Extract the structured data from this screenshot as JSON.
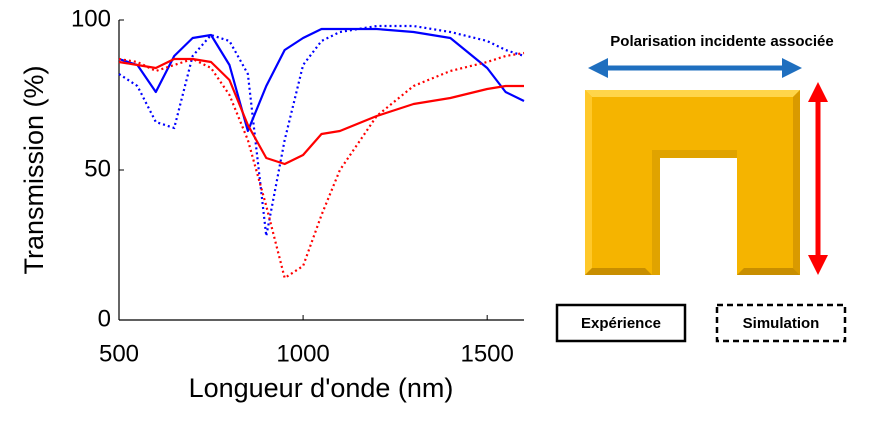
{
  "chart_data": {
    "type": "line",
    "xlabel": "Longueur d'onde (nm)",
    "ylabel": "Transmission (%)",
    "x": [
      500,
      550,
      600,
      650,
      700,
      750,
      800,
      850,
      900,
      950,
      1000,
      1050,
      1100,
      1200,
      1300,
      1400,
      1500,
      1550,
      1600
    ],
    "series": [
      {
        "color": "#0000ff",
        "dash": false,
        "values": [
          87,
          85,
          76,
          88,
          94,
          95,
          85,
          63,
          78,
          90,
          94,
          97,
          97,
          97,
          96,
          94,
          84,
          76,
          73
        ]
      },
      {
        "color": "#0000ff",
        "dash": true,
        "values": [
          82,
          78,
          66,
          64,
          88,
          95,
          93,
          82,
          28,
          60,
          85,
          93,
          96,
          98,
          98,
          96,
          93,
          90,
          88
        ]
      },
      {
        "color": "#ff0000",
        "dash": false,
        "values": [
          86,
          85,
          84,
          87,
          87,
          86,
          80,
          65,
          54,
          52,
          55,
          62,
          63,
          68,
          72,
          74,
          77,
          78,
          78
        ]
      },
      {
        "color": "#ff0000",
        "dash": true,
        "values": [
          87,
          86,
          83,
          85,
          87,
          84,
          75,
          60,
          38,
          14,
          18,
          35,
          50,
          68,
          78,
          83,
          86,
          88,
          89
        ]
      }
    ],
    "xlim": [
      500,
      1600
    ],
    "ylim": [
      0,
      100
    ],
    "xticks": [
      500,
      1000,
      1500
    ],
    "yticks": [
      0,
      50,
      100
    ],
    "diagram_title": "Polarisation incidente associée",
    "legend": [
      {
        "label": "Expérience",
        "dash": false
      },
      {
        "label": "Simulation",
        "dash": true
      }
    ]
  }
}
